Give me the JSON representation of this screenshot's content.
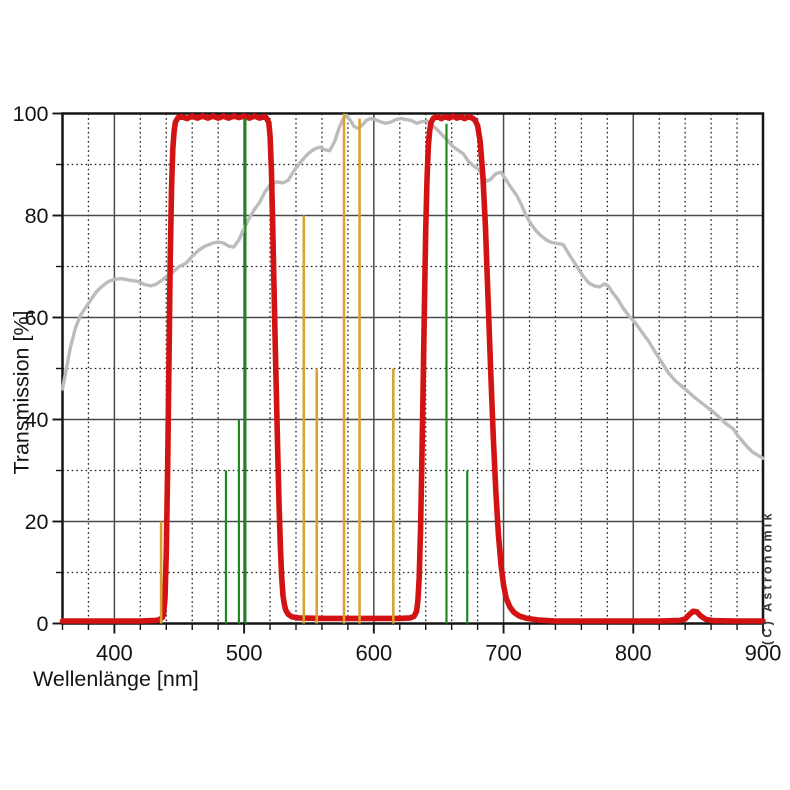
{
  "page": {
    "background": "#ffffff"
  },
  "chart_data": {
    "type": "line",
    "title": "",
    "xlabel": "Wellenlänge [nm]",
    "ylabel": "Transmission [%]",
    "xlim": [
      360,
      900
    ],
    "ylim": [
      0,
      100
    ],
    "x_major_ticks": [
      400,
      500,
      600,
      700,
      800,
      900
    ],
    "x_tick_labels": [
      "400",
      "500",
      "600",
      "700",
      "800",
      "900"
    ],
    "x_minor_step": 20,
    "y_major_ticks": [
      0,
      20,
      40,
      60,
      80,
      100
    ],
    "y_tick_labels": [
      "0",
      "20",
      "40",
      "60",
      "80",
      "100"
    ],
    "y_minor_step": 10,
    "grid": {
      "major": "solid",
      "minor": "dotted"
    },
    "watermark": "(C) Astronomik",
    "colors": {
      "filter_curve": "#d31313",
      "sensor_curve": "#bcbcbc",
      "nebula_lines": "#1c8a1c",
      "lamp_lines": "#d9a231",
      "grid_major": "#4a4a4a",
      "grid_minor": "#222222",
      "border": "#151515",
      "text": "#141414",
      "watermark_text": "#383838"
    },
    "series": [
      {
        "name": "filter-transmission-curve",
        "color": "#d31313",
        "width": 5.6,
        "points": [
          [
            360,
            0.5
          ],
          [
            380,
            0.5
          ],
          [
            400,
            0.5
          ],
          [
            420,
            0.5
          ],
          [
            432,
            0.6
          ],
          [
            435,
            0.8
          ],
          [
            437,
            1.2
          ],
          [
            438,
            2
          ],
          [
            439,
            5
          ],
          [
            440,
            14
          ],
          [
            441,
            30
          ],
          [
            442,
            50
          ],
          [
            443,
            71
          ],
          [
            444,
            85
          ],
          [
            445,
            93
          ],
          [
            446,
            96.5
          ],
          [
            447,
            98.3
          ],
          [
            449,
            99.2
          ],
          [
            452,
            99.4
          ],
          [
            456,
            99
          ],
          [
            460,
            99.5
          ],
          [
            464,
            99.1
          ],
          [
            468,
            99.5
          ],
          [
            472,
            99.1
          ],
          [
            476,
            99.5
          ],
          [
            480,
            99.1
          ],
          [
            484,
            99.5
          ],
          [
            488,
            99.1
          ],
          [
            492,
            99.5
          ],
          [
            496,
            99.2
          ],
          [
            500,
            99.5
          ],
          [
            504,
            99.1
          ],
          [
            508,
            99.5
          ],
          [
            512,
            99.1
          ],
          [
            515,
            99.4
          ],
          [
            517,
            99.2
          ],
          [
            519,
            98.2
          ],
          [
            520,
            95.5
          ],
          [
            521,
            89
          ],
          [
            522,
            79
          ],
          [
            523,
            67
          ],
          [
            524,
            55
          ],
          [
            525,
            44
          ],
          [
            526,
            33
          ],
          [
            527,
            23
          ],
          [
            528,
            15
          ],
          [
            529,
            9
          ],
          [
            530,
            5.5
          ],
          [
            531,
            3.8
          ],
          [
            532,
            2.7
          ],
          [
            534,
            1.8
          ],
          [
            537,
            1.3
          ],
          [
            542,
            1.1
          ],
          [
            560,
            1
          ],
          [
            580,
            1
          ],
          [
            600,
            1
          ],
          [
            620,
            1
          ],
          [
            628,
            1.1
          ],
          [
            631,
            1.4
          ],
          [
            633,
            2.4
          ],
          [
            634,
            4.5
          ],
          [
            635,
            9
          ],
          [
            636,
            18
          ],
          [
            637,
            31
          ],
          [
            638,
            46
          ],
          [
            639,
            62
          ],
          [
            640,
            77
          ],
          [
            641,
            87
          ],
          [
            642,
            93.5
          ],
          [
            643,
            96.5
          ],
          [
            644,
            98.2
          ],
          [
            646,
            99.1
          ],
          [
            649,
            99.4
          ],
          [
            652,
            99
          ],
          [
            655,
            99.4
          ],
          [
            658,
            99.1
          ],
          [
            661,
            99.5
          ],
          [
            664,
            99.1
          ],
          [
            667,
            99.4
          ],
          [
            670,
            99
          ],
          [
            673,
            99.4
          ],
          [
            676,
            99.1
          ],
          [
            678,
            98.7
          ],
          [
            680,
            97.6
          ],
          [
            682,
            94.5
          ],
          [
            684,
            88
          ],
          [
            686,
            78
          ],
          [
            688,
            64
          ],
          [
            690,
            50
          ],
          [
            692,
            37
          ],
          [
            694,
            26
          ],
          [
            696,
            17.5
          ],
          [
            698,
            11.5
          ],
          [
            700,
            7.5
          ],
          [
            702,
            5
          ],
          [
            705,
            3.2
          ],
          [
            708,
            2.2
          ],
          [
            712,
            1.5
          ],
          [
            718,
            1
          ],
          [
            726,
            0.7
          ],
          [
            740,
            0.5
          ],
          [
            780,
            0.5
          ],
          [
            820,
            0.5
          ],
          [
            836,
            0.6
          ],
          [
            840,
            0.9
          ],
          [
            843,
            1.7
          ],
          [
            846,
            2.4
          ],
          [
            849,
            2.3
          ],
          [
            852,
            1.5
          ],
          [
            856,
            0.8
          ],
          [
            862,
            0.55
          ],
          [
            880,
            0.5
          ],
          [
            900,
            0.5
          ]
        ]
      },
      {
        "name": "spectral-sensitivity-curve",
        "color": "#bcbcbc",
        "width": 3.4,
        "points": [
          [
            360,
            46
          ],
          [
            363,
            50
          ],
          [
            366,
            54
          ],
          [
            370,
            58
          ],
          [
            374,
            60.5
          ],
          [
            378,
            62
          ],
          [
            382,
            63.5
          ],
          [
            386,
            65
          ],
          [
            390,
            66
          ],
          [
            395,
            67
          ],
          [
            400,
            67.5
          ],
          [
            406,
            67.6
          ],
          [
            412,
            67.3
          ],
          [
            418,
            67.1
          ],
          [
            423,
            66.5
          ],
          [
            428,
            66.2
          ],
          [
            432,
            66.5
          ],
          [
            436,
            67.2
          ],
          [
            440,
            68
          ],
          [
            445,
            68.9
          ],
          [
            450,
            70
          ],
          [
            455,
            70.6
          ],
          [
            460,
            72
          ],
          [
            465,
            73.2
          ],
          [
            470,
            74
          ],
          [
            476,
            74.6
          ],
          [
            480,
            74.8
          ],
          [
            484,
            74.6
          ],
          [
            488,
            74
          ],
          [
            492,
            73.8
          ],
          [
            496,
            75.2
          ],
          [
            500,
            77.5
          ],
          [
            504,
            79.5
          ],
          [
            508,
            81.2
          ],
          [
            512,
            82.6
          ],
          [
            516,
            84.6
          ],
          [
            520,
            86
          ],
          [
            525,
            86.6
          ],
          [
            530,
            86.4
          ],
          [
            534,
            86.9
          ],
          [
            538,
            88.6
          ],
          [
            542,
            90
          ],
          [
            546,
            91.2
          ],
          [
            550,
            92.3
          ],
          [
            554,
            93
          ],
          [
            558,
            93.4
          ],
          [
            562,
            92.9
          ],
          [
            566,
            92.7
          ],
          [
            570,
            94.6
          ],
          [
            573,
            97
          ],
          [
            576,
            98.8
          ],
          [
            579,
            99.6
          ],
          [
            582,
            98.6
          ],
          [
            585,
            97.4
          ],
          [
            588,
            97.1
          ],
          [
            591,
            97.7
          ],
          [
            594,
            98.6
          ],
          [
            597,
            99
          ],
          [
            601,
            98.8
          ],
          [
            605,
            98.4
          ],
          [
            609,
            98.1
          ],
          [
            613,
            98.3
          ],
          [
            617,
            98.8
          ],
          [
            621,
            99
          ],
          [
            625,
            98.8
          ],
          [
            629,
            98.6
          ],
          [
            633,
            98.1
          ],
          [
            637,
            98.4
          ],
          [
            641,
            98.5
          ],
          [
            645,
            97.7
          ],
          [
            649,
            96.8
          ],
          [
            653,
            95.7
          ],
          [
            657,
            94.7
          ],
          [
            661,
            93.5
          ],
          [
            665,
            92.8
          ],
          [
            669,
            92.1
          ],
          [
            673,
            90.6
          ],
          [
            677,
            89.7
          ],
          [
            681,
            89
          ],
          [
            684,
            87.7
          ],
          [
            687,
            86.7
          ],
          [
            690,
            87.1
          ],
          [
            694,
            88.2
          ],
          [
            698,
            88.5
          ],
          [
            702,
            87
          ],
          [
            706,
            85.4
          ],
          [
            710,
            84
          ],
          [
            714,
            82
          ],
          [
            717,
            80.2
          ],
          [
            721,
            78.4
          ],
          [
            725,
            77
          ],
          [
            729,
            76
          ],
          [
            733,
            75.2
          ],
          [
            737,
            74.7
          ],
          [
            742,
            74.5
          ],
          [
            746,
            74.3
          ],
          [
            750,
            72.6
          ],
          [
            754,
            71
          ],
          [
            758,
            69.4
          ],
          [
            762,
            67.9
          ],
          [
            766,
            66.7
          ],
          [
            770,
            66.2
          ],
          [
            774,
            66
          ],
          [
            778,
            66.6
          ],
          [
            781,
            66.1
          ],
          [
            784,
            64.9
          ],
          [
            788,
            63.6
          ],
          [
            792,
            61.9
          ],
          [
            797,
            60.2
          ],
          [
            802,
            58.8
          ],
          [
            807,
            57
          ],
          [
            812,
            55.3
          ],
          [
            817,
            53.2
          ],
          [
            822,
            51.2
          ],
          [
            827,
            49.2
          ],
          [
            832,
            47.7
          ],
          [
            837,
            46.6
          ],
          [
            842,
            45.5
          ],
          [
            847,
            44.4
          ],
          [
            852,
            43.4
          ],
          [
            857,
            42.4
          ],
          [
            862,
            41.4
          ],
          [
            866,
            40.5
          ],
          [
            870,
            39.5
          ],
          [
            874,
            38.7
          ],
          [
            877,
            38.2
          ],
          [
            880,
            37
          ],
          [
            884,
            35.8
          ],
          [
            888,
            34.6
          ],
          [
            892,
            33.6
          ],
          [
            896,
            33
          ],
          [
            900,
            32.4
          ]
        ]
      }
    ],
    "emission_lines": {
      "nebula": {
        "color": "#1c8a1c",
        "width": 2.2,
        "lines": [
          [
            486,
            30
          ],
          [
            496,
            40
          ],
          [
            501,
            99
          ],
          [
            656,
            98
          ],
          [
            672,
            30
          ]
        ]
      },
      "lamp": {
        "color": "#d9a231",
        "width": 2.6,
        "lines": [
          [
            436,
            20
          ],
          [
            546,
            80
          ],
          [
            556,
            50
          ],
          [
            577,
            100
          ],
          [
            589,
            99
          ],
          [
            615,
            50
          ]
        ]
      }
    }
  }
}
